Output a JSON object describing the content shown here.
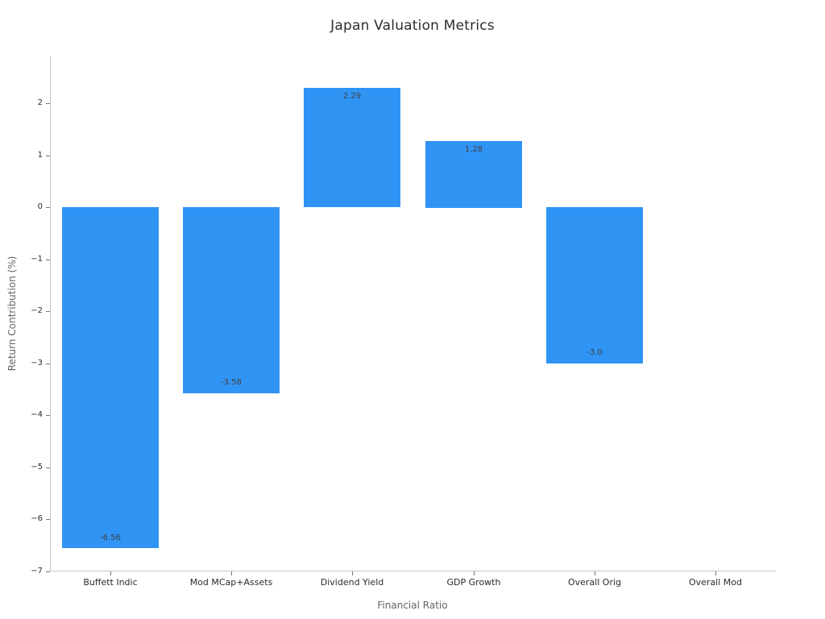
{
  "chart_data": {
    "type": "bar",
    "title": "Japan Valuation Metrics",
    "xlabel": "Financial Ratio",
    "ylabel": "Return Contribution (%)",
    "categories": [
      "Buffett Indic",
      "Mod MCap+Assets",
      "Dividend Yield",
      "GDP Growth",
      "Overall Orig",
      "Overall Mod"
    ],
    "values": [
      -6.56,
      -3.58,
      2.29,
      1.28,
      -3.0,
      0.0
    ],
    "bar_labels": [
      "-6.56",
      "-3.58",
      "2.29",
      "1.28",
      "-3.0",
      ""
    ],
    "yticks": [
      2,
      1,
      0,
      -1,
      -2,
      -3,
      -4,
      -5,
      -6,
      -7
    ],
    "ytick_labels": [
      "2",
      "1",
      "0",
      "−1",
      "−2",
      "−3",
      "−4",
      "−5",
      "−6",
      "−7"
    ],
    "ylim": [
      -7.0,
      2.9
    ],
    "grid": false,
    "legend": null,
    "colors": {
      "bar": "#3094f5",
      "bar_value_label": "#3f3f3f",
      "tick_label": "#2b2b2b",
      "axis_title": "#636363",
      "spine": "#c9c9c9"
    }
  }
}
